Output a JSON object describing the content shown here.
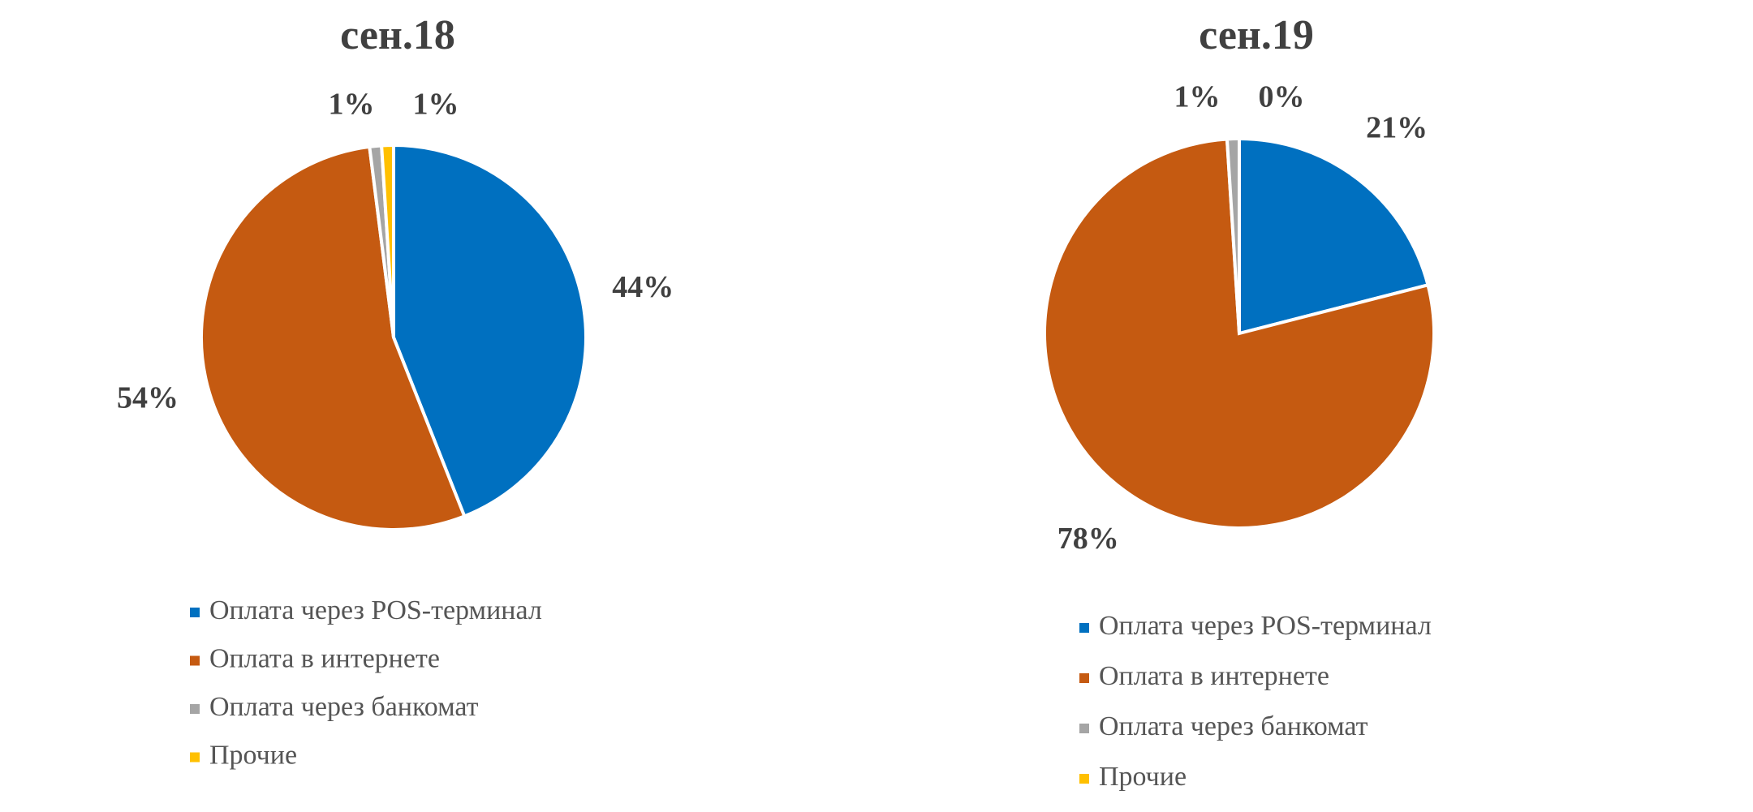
{
  "chart_data": [
    {
      "type": "pie",
      "title": "сен.18",
      "categories": [
        "Оплата через POS-терминал",
        "Оплата в интернете",
        "Оплата через банкомат",
        "Прочие"
      ],
      "values": [
        44,
        54,
        1,
        1
      ],
      "value_labels": [
        "44%",
        "54%",
        "1%",
        "1%"
      ],
      "colors": [
        "#0070c0",
        "#c55a11",
        "#a5a5a5",
        "#ffc000"
      ]
    },
    {
      "type": "pie",
      "title": "сен.19",
      "categories": [
        "Оплата через POS-терминал",
        "Оплата в интернете",
        "Оплата через банкомат",
        "Прочие"
      ],
      "values": [
        21,
        78,
        1,
        0
      ],
      "value_labels": [
        "21%",
        "78%",
        "1%",
        "0%"
      ],
      "colors": [
        "#0070c0",
        "#c55a11",
        "#a5a5a5",
        "#ffc000"
      ]
    }
  ]
}
